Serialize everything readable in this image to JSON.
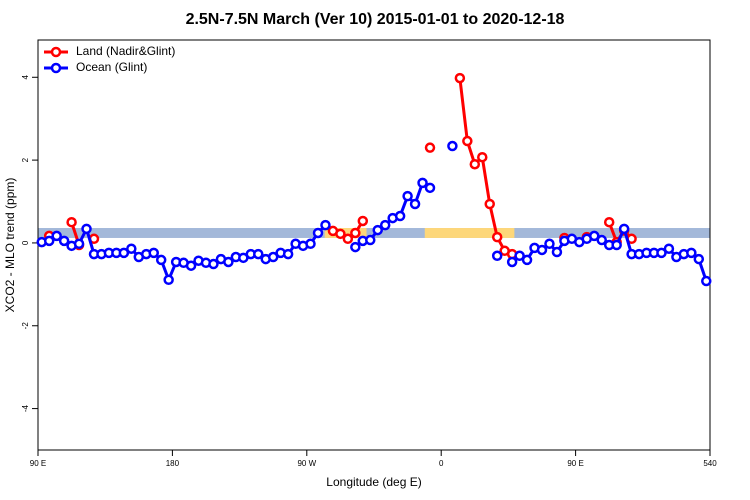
{
  "chart_data": {
    "type": "line",
    "title": "2.5N-7.5N March (Ver 10)   2015-01-01 to 2020-12-18",
    "xlabel": "Longitude (deg E)",
    "ylabel": "XCO2 - MLO trend (ppm)",
    "xlim": [
      90,
      540
    ],
    "ylim": [
      -5,
      4.9
    ],
    "xticks": [
      {
        "value": 90,
        "label": "90 E"
      },
      180,
      {
        "value": 270,
        "label": "90 W"
      },
      {
        "value": 360,
        "label": "0"
      },
      {
        "value": 450,
        "label": "90 E"
      },
      540
    ],
    "yticks": [
      -4,
      -2,
      0,
      2,
      4
    ],
    "legend": "topleft",
    "bands": [
      {
        "color": "#a3b8d9",
        "xlim": [
          90,
          540
        ],
        "ylim": [
          0.12,
          0.36
        ]
      },
      {
        "color": "#fdd77a",
        "xlim": [
          282,
          310
        ],
        "ylim": [
          0.12,
          0.36
        ]
      },
      {
        "color": "#fdd77a",
        "xlim": [
          349,
          409
        ],
        "ylim": [
          0.12,
          0.36
        ]
      }
    ],
    "x": [
      92.5,
      97.5,
      102.5,
      107.5,
      112.5,
      117.5,
      122.5,
      127.5,
      132.5,
      137.5,
      142.5,
      147.5,
      152.5,
      157.5,
      162.5,
      167.5,
      172.5,
      177.5,
      182.5,
      187.5,
      192.5,
      197.5,
      202.5,
      207.5,
      212.5,
      217.5,
      222.5,
      227.5,
      232.5,
      237.5,
      242.5,
      247.5,
      252.5,
      257.5,
      262.5,
      267.5,
      272.5,
      277.5,
      282.5,
      287.5,
      292.5,
      297.5,
      302.5,
      307.5,
      312.5,
      317.5,
      322.5,
      327.5,
      332.5,
      337.5,
      342.5,
      347.5,
      352.5,
      357.5,
      362.5,
      367.5,
      372.5,
      377.5,
      382.5,
      387.5,
      392.5,
      397.5,
      402.5,
      407.5,
      412.5,
      417.5,
      422.5,
      427.5,
      432.5,
      437.5,
      442.5,
      447.5,
      452.5,
      457.5,
      462.5,
      467.5,
      472.5,
      477.5,
      482.5,
      487.5,
      492.5,
      497.5,
      502.5,
      507.5,
      512.5,
      517.5,
      522.5,
      527.5,
      532.5,
      537.5
    ],
    "series": [
      {
        "name": "Land (Nadir&Glint)",
        "color": "#ff0000",
        "values": [
          null,
          0.17,
          null,
          null,
          0.5,
          -0.05,
          null,
          0.1,
          null,
          null,
          null,
          null,
          null,
          null,
          null,
          null,
          null,
          null,
          null,
          null,
          null,
          null,
          null,
          null,
          null,
          null,
          null,
          null,
          null,
          null,
          null,
          null,
          null,
          null,
          null,
          null,
          null,
          null,
          null,
          0.29,
          0.22,
          0.1,
          0.24,
          0.53,
          null,
          null,
          null,
          null,
          null,
          null,
          null,
          null,
          2.3,
          null,
          null,
          null,
          3.98,
          2.46,
          1.9,
          2.07,
          0.94,
          0.14,
          -0.19,
          -0.27,
          null,
          null,
          null,
          null,
          null,
          null,
          0.12,
          null,
          null,
          0.14,
          null,
          null,
          0.5,
          0.02,
          0.3,
          0.1,
          null,
          null,
          null,
          null,
          null,
          null,
          null,
          null,
          null,
          null
        ]
      },
      {
        "name": "Ocean (Glint)",
        "color": "#0000ff",
        "values": [
          0.02,
          0.05,
          0.17,
          0.05,
          -0.07,
          -0.02,
          0.34,
          -0.27,
          -0.27,
          -0.24,
          -0.24,
          -0.24,
          -0.14,
          -0.34,
          -0.27,
          -0.24,
          -0.41,
          -0.89,
          -0.46,
          -0.48,
          -0.55,
          -0.43,
          -0.48,
          -0.51,
          -0.39,
          -0.46,
          -0.34,
          -0.36,
          -0.27,
          -0.27,
          -0.39,
          -0.34,
          -0.24,
          -0.27,
          -0.02,
          -0.07,
          -0.02,
          0.24,
          0.43,
          null,
          null,
          null,
          -0.1,
          0.05,
          0.07,
          0.31,
          0.43,
          0.6,
          0.65,
          1.13,
          0.94,
          1.45,
          1.33,
          null,
          null,
          2.34,
          null,
          null,
          null,
          null,
          null,
          -0.31,
          null,
          -0.46,
          -0.31,
          -0.41,
          -0.12,
          -0.17,
          -0.02,
          -0.22,
          0.05,
          0.1,
          0.02,
          0.1,
          0.17,
          0.07,
          -0.05,
          -0.05,
          0.34,
          -0.27,
          -0.27,
          -0.24,
          -0.24,
          -0.24,
          -0.14,
          -0.34,
          -0.27,
          -0.24,
          -0.39,
          -0.92
        ]
      }
    ]
  }
}
